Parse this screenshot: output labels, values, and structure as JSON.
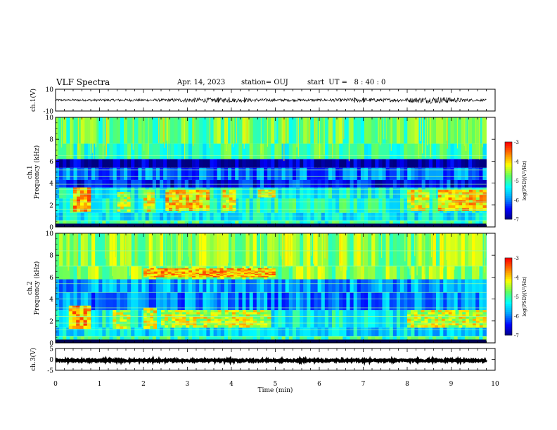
{
  "header": {
    "title": "VLF Spectra",
    "date": "Apr. 14, 2023",
    "station": "station= OUJ",
    "start": "start  UT =   8 : 40 : 0"
  },
  "colors": {
    "cmap": [
      "#000080",
      "#0000ff",
      "#00a0ff",
      "#00ffff",
      "#60ff60",
      "#ffff00",
      "#ff8000",
      "#ff0000",
      "#ffffff"
    ],
    "wave": "#000000",
    "spectral_line": "#9aff9a"
  },
  "chart_data": [
    {
      "type": "line",
      "name": "waveform-ch1",
      "ylabel": "ch.1(V)",
      "ylim": [
        -10,
        10
      ],
      "yticks": [
        "10",
        "-10"
      ],
      "xlim": [
        0,
        10
      ],
      "baseline": 0,
      "x": [
        0,
        0.5,
        1,
        1.5,
        2,
        2.5,
        3,
        3.5,
        4,
        4.5,
        5,
        5.5,
        6,
        6.5,
        7,
        7.5,
        8,
        8.2,
        8.5,
        8.8,
        9,
        9.5,
        9.8
      ],
      "amplitude": [
        1,
        1,
        1,
        1.2,
        1.1,
        1.2,
        2,
        2,
        2,
        1.5,
        1.2,
        1.2,
        1.2,
        1.5,
        2,
        1.5,
        1.8,
        2.5,
        3,
        3,
        2.5,
        1.2,
        1
      ]
    },
    {
      "type": "heatmap",
      "name": "spectrogram-ch1",
      "ylabel": "ch.1\nFrequency (kHz)",
      "ylim": [
        0,
        10
      ],
      "yticks": [
        "0",
        "2",
        "4",
        "6",
        "8",
        "10"
      ],
      "xlim": [
        0,
        10
      ],
      "colorbar": {
        "label": "log(PSD)(V²/Hz)",
        "range": [
          -7,
          -3
        ],
        "ticks": [
          "-3",
          "-4",
          "-5",
          "-6",
          "-7"
        ]
      },
      "bands": [
        {
          "f": [
            0,
            0.6
          ],
          "level": -5.0
        },
        {
          "f": [
            0.6,
            1.3
          ],
          "level": -5.4
        },
        {
          "f": [
            1.3,
            2.6
          ],
          "level": -5.1
        },
        {
          "f": [
            2.6,
            3.6
          ],
          "level": -5.3
        },
        {
          "f": [
            3.6,
            4.3
          ],
          "level": -6.4
        },
        {
          "f": [
            4.3,
            5.4
          ],
          "level": -6.0
        },
        {
          "f": [
            5.4,
            6.2
          ],
          "level": -6.8
        },
        {
          "f": [
            6.2,
            7.6
          ],
          "level": -5.0
        },
        {
          "f": [
            7.6,
            10
          ],
          "level": -4.8
        }
      ],
      "bursts": [
        {
          "t": [
            0.4,
            0.8
          ],
          "f": [
            1.4,
            3.6
          ],
          "level": -3.8
        },
        {
          "t": [
            1.4,
            1.7
          ],
          "f": [
            1.4,
            3.2
          ],
          "level": -4.4
        },
        {
          "t": [
            2.0,
            2.25
          ],
          "f": [
            1.4,
            3.4
          ],
          "level": -4.2
        },
        {
          "t": [
            2.5,
            3.5
          ],
          "f": [
            1.5,
            3.4
          ],
          "level": -4.0
        },
        {
          "t": [
            3.8,
            4.1
          ],
          "f": [
            1.5,
            3.4
          ],
          "level": -4.2
        },
        {
          "t": [
            4.6,
            5.0
          ],
          "f": [
            2.7,
            3.4
          ],
          "level": -4.3
        },
        {
          "t": [
            8.0,
            8.5
          ],
          "f": [
            1.5,
            3.4
          ],
          "level": -4.2
        },
        {
          "t": [
            8.7,
            9.8
          ],
          "f": [
            1.5,
            3.4
          ],
          "level": -4.0
        }
      ],
      "lines_khz": [
        0.55,
        1.0,
        1.6,
        2.3,
        3.0,
        3.45,
        3.9,
        4.6,
        5.2,
        6.5
      ]
    },
    {
      "type": "heatmap",
      "name": "spectrogram-ch2",
      "ylabel": "ch.2\nFrequency (kHz)",
      "ylim": [
        0,
        10
      ],
      "yticks": [
        "0",
        "2",
        "4",
        "6",
        "8",
        "10"
      ],
      "xlim": [
        0,
        10
      ],
      "colorbar": {
        "label": "log(PSD)(V²/Hz)",
        "range": [
          -7,
          -3
        ],
        "ticks": [
          "-3",
          "-4",
          "-5",
          "-6",
          "-7"
        ]
      },
      "bands": [
        {
          "f": [
            0,
            0.6
          ],
          "level": -5.0
        },
        {
          "f": [
            0.6,
            1.4
          ],
          "level": -5.5
        },
        {
          "f": [
            1.4,
            3.0
          ],
          "level": -5.3
        },
        {
          "f": [
            3.0,
            4.6
          ],
          "level": -5.9
        },
        {
          "f": [
            4.6,
            5.8
          ],
          "level": -5.8
        },
        {
          "f": [
            5.8,
            7.0
          ],
          "level": -4.6
        },
        {
          "f": [
            7.0,
            10
          ],
          "level": -4.6
        }
      ],
      "bursts": [
        {
          "t": [
            0.3,
            0.8
          ],
          "f": [
            1.3,
            3.4
          ],
          "level": -3.8
        },
        {
          "t": [
            1.3,
            1.7
          ],
          "f": [
            1.3,
            3.0
          ],
          "level": -4.4
        },
        {
          "t": [
            2.0,
            2.3
          ],
          "f": [
            1.3,
            3.2
          ],
          "level": -4.2
        },
        {
          "t": [
            2.4,
            4.9
          ],
          "f": [
            1.4,
            3.0
          ],
          "level": -4.3
        },
        {
          "t": [
            2.0,
            5.0
          ],
          "f": [
            6.0,
            6.8
          ],
          "level": -3.8
        },
        {
          "t": [
            8.0,
            9.8
          ],
          "f": [
            1.4,
            3.0
          ],
          "level": -4.3
        }
      ],
      "lines_khz": [
        0.6,
        1.2,
        1.8,
        2.4,
        3.2,
        4.0,
        4.6,
        5.4,
        7.0,
        8.4
      ]
    },
    {
      "type": "line",
      "name": "waveform-ch3",
      "ylabel": "ch.3(V)",
      "ylim": [
        -5,
        5
      ],
      "yticks": [
        "5",
        "0",
        "-5"
      ],
      "xlim": [
        0,
        10
      ],
      "baseline": -0.5,
      "x": [
        0,
        9.8
      ],
      "amplitude": [
        0.4,
        0.4
      ]
    }
  ],
  "xaxis": {
    "label": "Time (min)",
    "ticks": [
      "0",
      "1",
      "2",
      "3",
      "4",
      "5",
      "6",
      "7",
      "8",
      "9",
      "10"
    ]
  }
}
